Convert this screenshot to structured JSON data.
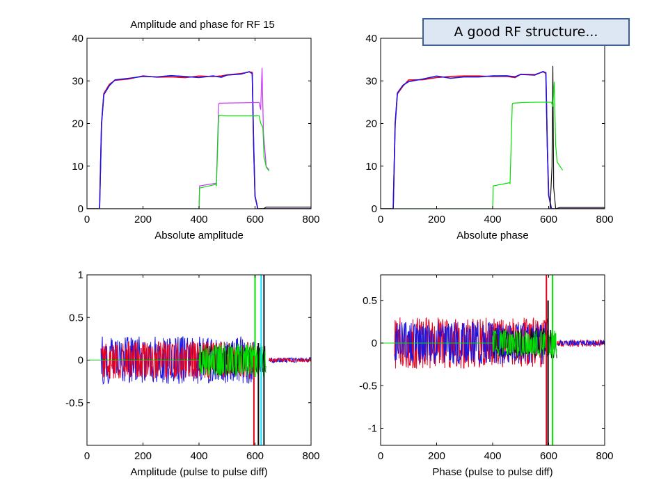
{
  "annotation": {
    "text": "A good RF structure..."
  },
  "colors": {
    "red": "#e8001c",
    "blue": "#1c14e0",
    "green": "#00e000",
    "magenta": "#cc33ff",
    "black": "#111111",
    "cyan": "#00e0ff",
    "background": "#ffffff",
    "annotation_fill": "#dde7f3",
    "annotation_border": "#3c5f94"
  },
  "chart_data": [
    {
      "type": "line",
      "title": "Amplitude and phase for RF 15",
      "xlabel": "Absolute amplitude",
      "ylabel": "",
      "xlim": [
        0,
        800
      ],
      "ylim": [
        0,
        40
      ],
      "xticks": [
        0,
        200,
        400,
        600,
        800
      ],
      "yticks": [
        0,
        10,
        20,
        30,
        40
      ],
      "grid": false,
      "series": [
        {
          "color": "red",
          "x": [
            0,
            45,
            52,
            60,
            80,
            100,
            150,
            200,
            250,
            300,
            350,
            400,
            450,
            480,
            500,
            550,
            580,
            590,
            595,
            600,
            610,
            800
          ],
          "y": [
            0,
            0,
            20,
            27,
            29,
            30,
            30.5,
            31,
            30.8,
            31,
            31,
            31,
            31.2,
            31,
            31.4,
            31.6,
            32,
            31.8,
            15,
            3,
            0,
            0
          ]
        },
        {
          "color": "blue",
          "x": [
            0,
            45,
            52,
            60,
            80,
            100,
            150,
            200,
            250,
            300,
            350,
            400,
            450,
            480,
            500,
            550,
            580,
            590,
            595,
            600,
            610,
            800
          ],
          "y": [
            0,
            0,
            20,
            27,
            29,
            30,
            30.5,
            31,
            30.8,
            31,
            31,
            31,
            31.2,
            31,
            31.4,
            31.6,
            32,
            31.8,
            15,
            3,
            0,
            0
          ]
        },
        {
          "color": "magenta",
          "x": [
            0,
            400,
            402,
            460,
            462,
            470,
            472,
            615,
            620,
            625,
            630,
            640,
            650
          ],
          "y": [
            0,
            0,
            5.5,
            6,
            6,
            24.5,
            25,
            25,
            23,
            33,
            18,
            10,
            9
          ]
        },
        {
          "color": "green",
          "x": [
            0,
            400,
            402,
            460,
            462,
            470,
            472,
            500,
            550,
            615,
            620,
            628,
            632,
            640,
            650
          ],
          "y": [
            0,
            0,
            5,
            5.5,
            5.5,
            21.5,
            22,
            22,
            22,
            22,
            20,
            19,
            12,
            10,
            9
          ]
        },
        {
          "color": "black",
          "x": [
            600,
            605,
            615,
            620,
            625,
            630,
            640,
            800
          ],
          "y": [
            0,
            0,
            0,
            0,
            0,
            0,
            0.4,
            0.4
          ]
        }
      ]
    },
    {
      "type": "line",
      "title": "",
      "xlabel": "Absolute phase",
      "ylabel": "",
      "xlim": [
        0,
        800
      ],
      "ylim": [
        0,
        40
      ],
      "xticks": [
        0,
        200,
        400,
        600,
        800
      ],
      "yticks": [
        0,
        10,
        20,
        30,
        40
      ],
      "grid": false,
      "series": [
        {
          "color": "red",
          "x": [
            0,
            45,
            52,
            60,
            80,
            100,
            150,
            200,
            250,
            300,
            350,
            400,
            450,
            480,
            500,
            550,
            580,
            590,
            595,
            600,
            610,
            800
          ],
          "y": [
            0,
            0,
            20,
            27,
            29,
            30,
            30.5,
            31,
            30.8,
            31,
            31,
            31,
            31.2,
            31,
            31.4,
            31.6,
            32,
            31.8,
            15,
            3,
            0,
            0
          ]
        },
        {
          "color": "blue",
          "x": [
            0,
            45,
            52,
            60,
            80,
            100,
            150,
            200,
            250,
            300,
            350,
            400,
            450,
            480,
            500,
            550,
            580,
            590,
            595,
            600,
            610,
            800
          ],
          "y": [
            0,
            0,
            20,
            27,
            29,
            30,
            30.5,
            31,
            30.8,
            31,
            31,
            31,
            31.2,
            31,
            31.4,
            31.6,
            32,
            31.8,
            15,
            3,
            0,
            0
          ]
        },
        {
          "color": "black",
          "x": [
            600,
            605,
            612,
            615,
            618,
            625,
            640,
            800
          ],
          "y": [
            0,
            0,
            10,
            33.5,
            5,
            0,
            0.3,
            0.3
          ]
        },
        {
          "color": "green",
          "x": [
            0,
            400,
            402,
            460,
            462,
            470,
            472,
            500,
            550,
            600,
            610,
            615,
            620,
            625,
            630,
            640,
            650
          ],
          "y": [
            0,
            0,
            5.5,
            6,
            6,
            24.5,
            25,
            25,
            25,
            25,
            25,
            24,
            30,
            15,
            11,
            10,
            9.2
          ]
        }
      ]
    },
    {
      "type": "line",
      "title": "",
      "xlabel": "Amplitude (pulse to pulse diff)",
      "ylabel": "",
      "xlim": [
        0,
        800
      ],
      "ylim": [
        -1,
        1
      ],
      "xticks": [
        0,
        200,
        400,
        600,
        800
      ],
      "yticks": [
        -0.5,
        0,
        0.5,
        1
      ],
      "grid": false,
      "noise_bands": [
        {
          "color": "blue",
          "x_start": 50,
          "x_end": 600,
          "amplitude": 0.28
        },
        {
          "color": "red",
          "x_start": 50,
          "x_end": 600,
          "amplitude": 0.22
        },
        {
          "color": "black",
          "x_start": 400,
          "x_end": 640,
          "amplitude": 0.18
        },
        {
          "color": "green",
          "x_start": 400,
          "x_end": 640,
          "amplitude": 0.2
        },
        {
          "color": "blue",
          "x_start": 650,
          "x_end": 800,
          "amplitude": 0.03
        },
        {
          "color": "red",
          "x_start": 650,
          "x_end": 800,
          "amplitude": 0.02
        }
      ],
      "spikes": [
        {
          "color": "red",
          "x": 596,
          "low": -1,
          "high": 0.05
        },
        {
          "color": "green",
          "x": 600,
          "low": -0.2,
          "high": 1
        },
        {
          "color": "black",
          "x": 612,
          "low": -1,
          "high": 0.2
        },
        {
          "color": "cyan",
          "x": 622,
          "low": -1,
          "high": 1
        },
        {
          "color": "black",
          "x": 632,
          "low": -1,
          "high": 1
        }
      ],
      "baseline": {
        "color": "green",
        "x_start": 0,
        "x_end": 400,
        "y": 0
      }
    },
    {
      "type": "line",
      "title": "",
      "xlabel": "Phase (pulse to pulse diff)",
      "ylabel": "",
      "xlim": [
        0,
        800
      ],
      "ylim": [
        -1.2,
        0.8
      ],
      "xticks": [
        0,
        200,
        400,
        600,
        800
      ],
      "yticks": [
        -1,
        -0.5,
        0,
        0.5
      ],
      "grid": false,
      "noise_bands": [
        {
          "color": "red",
          "x_start": 50,
          "x_end": 600,
          "amplitude": 0.3
        },
        {
          "color": "blue",
          "x_start": 50,
          "x_end": 600,
          "amplitude": 0.25
        },
        {
          "color": "black",
          "x_start": 400,
          "x_end": 630,
          "amplitude": 0.18
        },
        {
          "color": "green",
          "x_start": 400,
          "x_end": 630,
          "amplitude": 0.15
        },
        {
          "color": "red",
          "x_start": 630,
          "x_end": 800,
          "amplitude": 0.04
        },
        {
          "color": "blue",
          "x_start": 630,
          "x_end": 800,
          "amplitude": 0.03
        }
      ],
      "spikes": [
        {
          "color": "red",
          "x": 592,
          "low": -1.2,
          "high": 0.8
        },
        {
          "color": "black",
          "x": 598,
          "low": -1.2,
          "high": 0.5
        },
        {
          "color": "green",
          "x": 614,
          "low": -1.2,
          "high": 0.8
        }
      ],
      "baseline": {
        "color": "green",
        "x_start": 0,
        "x_end": 400,
        "y": 0
      }
    }
  ]
}
